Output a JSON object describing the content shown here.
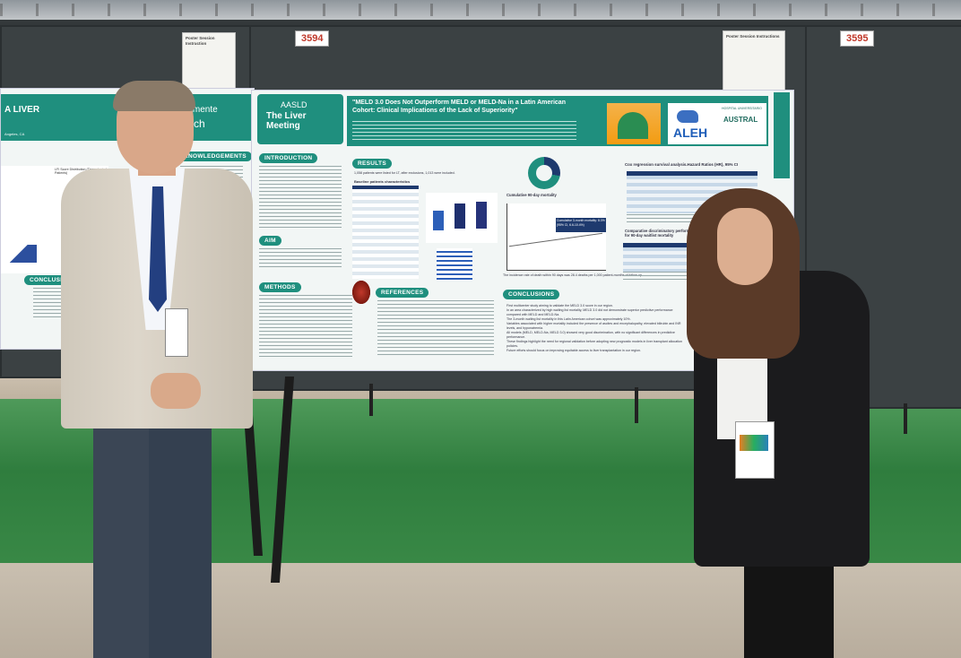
{
  "booths": {
    "left_number": "3594",
    "right_number": "3595",
    "left_card": "Poster Session Instruction",
    "right_card": "Poster Session Instructions"
  },
  "left_poster": {
    "title_fragment": "A LIVER",
    "banner_fragment": "mamente",
    "banner_fragment2": "ch",
    "location_fragment": "Angeles, CA",
    "chart_label": "LFI Score Distribution (Transplanted Patients)",
    "ack_header": "KNOWLEDGEMENTS",
    "conclusions_header": "CONCLUSIONS"
  },
  "main_poster": {
    "meeting_top": "AASLD",
    "meeting_name": "The Liver Meeting",
    "title": "\"MELD 3.0 Does Not Outperform MELD or MELD-Na in a Latin American Cohort: Clinical Implications of the Lack of Superiority\"",
    "org_aleh": "ALEH",
    "org_austral": "AUSTRAL",
    "austral_sub": "HOSPITAL UNIVERSITARIO",
    "sections": {
      "introduction": "INTRODUCTION",
      "aim": "AIM",
      "methods": "METHODS",
      "results": "RESULTS",
      "references": "REFERENCES",
      "conclusions": "CONCLUSIONS"
    },
    "results_intro": "1,058 patients were listed for LT, after exclusions, 1,013 were included.",
    "baseline_header": "Baseline patients characteristics",
    "cumulative_label": "Cumulative 90-day mortality",
    "cumulative_box": "Cumulative 3-month mortality: 8.3% (95% CI, 6.6-10.4%)",
    "cox_header": "Cox regression survival analysis.Hazard Ratios (HR), 95% CI",
    "comparative_header": "Comparative discriminatory performance of MELD scores for 90-day waitlist mortality",
    "incidence_text": "The incidence rate of death within 90 days was 28.4 deaths per 1,000 patient-months of follow-up.",
    "conclusion_first": "First multicenter study aiming to validate the MELD 3.0 score in our region.",
    "conclusion_2": "In an area characterized by high waiting list mortality, MELD 3.0 did not demonstrate superior predictive performance compared with MELD and MELD-Na.",
    "conclusion_3": "The 3-month waiting list mortality in this Latin American cohort was approximately 10%.",
    "conclusion_4": "Variables associated with higher mortality included the presence of ascites and encephalopathy, elevated bilirubin and INR levels, and hyponatremia.",
    "conclusion_5": "All models (MELD, MELD-Na, MELD 3.0) showed very good discrimination, with no significant differences in predictive performance.",
    "conclusion_6": "These findings highlight the need for regional validation before adopting new prognostic models in liver transplant allocation policies.",
    "conclusion_7": "Future efforts should focus on improving equitable access to liver transplantation in our region.",
    "cox_rows": [
      "Variable 1",
      "Child-Pugh",
      "MELD 3.0",
      "MELD-Na",
      "MELD"
    ],
    "comparative_rows": [
      "MELD",
      "MELD-Na",
      "MELD 3.0",
      "MELD 3.0 vs. MELD"
    ]
  },
  "colors": {
    "teal": "#1f8f7e",
    "navy": "#1e3a6e",
    "board": "#3b4143",
    "carpet": "#2f7d3e"
  }
}
